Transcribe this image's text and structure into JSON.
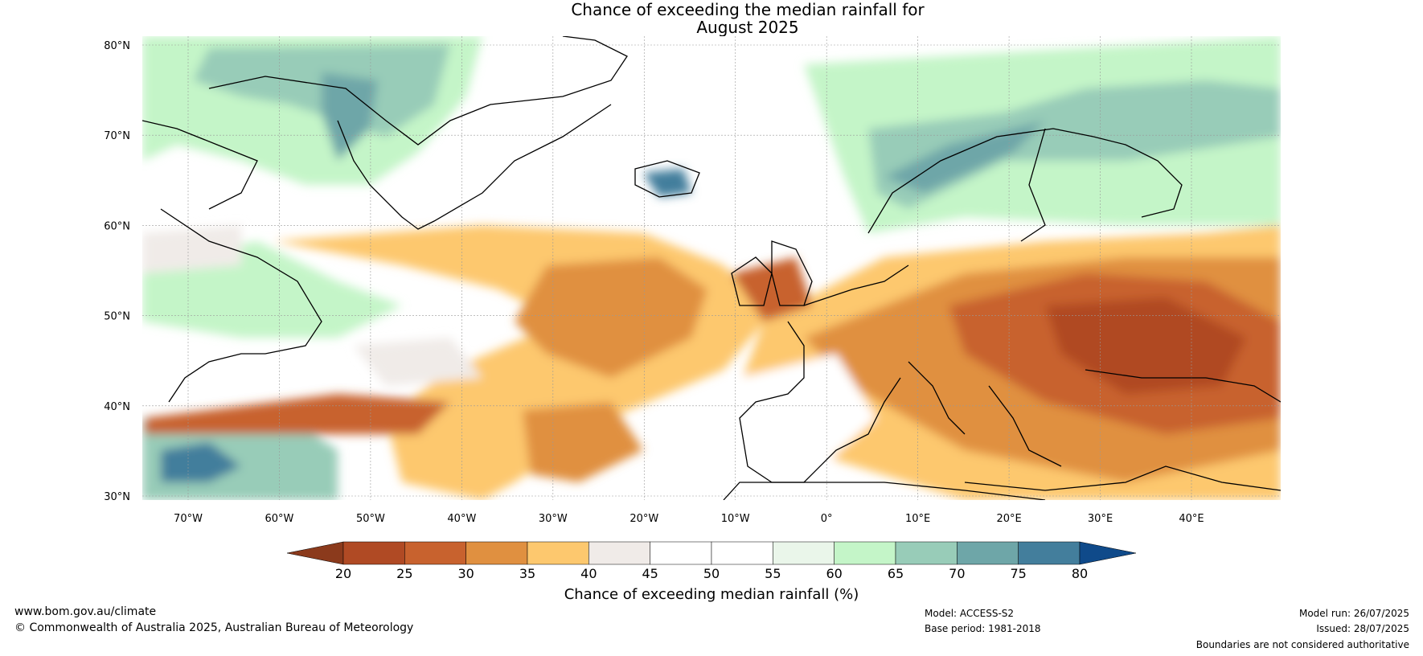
{
  "title_line1": "Chance of exceeding the median rainfall for",
  "title_line2": "August 2025",
  "lat_labels": [
    "80°N",
    "70°N",
    "60°N",
    "50°N",
    "40°N",
    "30°N"
  ],
  "lon_labels": [
    "70°W",
    "60°W",
    "50°W",
    "40°W",
    "30°W",
    "20°W",
    "10°W",
    "0°",
    "10°E",
    "20°E",
    "30°E",
    "40°E"
  ],
  "colorbar": {
    "title": "Chance of exceeding median rainfall (%)",
    "ticks": [
      "20",
      "25",
      "30",
      "35",
      "40",
      "45",
      "50",
      "55",
      "60",
      "65",
      "70",
      "75",
      "80"
    ],
    "colors": [
      "#8b3a1c",
      "#b04a24",
      "#c8622e",
      "#e09040",
      "#fdc86e",
      "#f0ebe8",
      "#ffffff",
      "#ffffff",
      "#eaf6ea",
      "#c4f5c8",
      "#98ccb8",
      "#6ea6a8",
      "#437e9c",
      "#0f4a8a"
    ]
  },
  "footer": {
    "url": "www.bom.gov.au/climate",
    "copyright": "© Commonwealth of Australia 2025, Australian Bureau of Meteorology",
    "model": "Model: ACCESS-S2",
    "base_period": "Base period: 1981-2018",
    "model_run": "Model run: 26/07/2025",
    "issued": "Issued: 28/07/2025",
    "boundaries": "Boundaries are not considered authoritative"
  }
}
